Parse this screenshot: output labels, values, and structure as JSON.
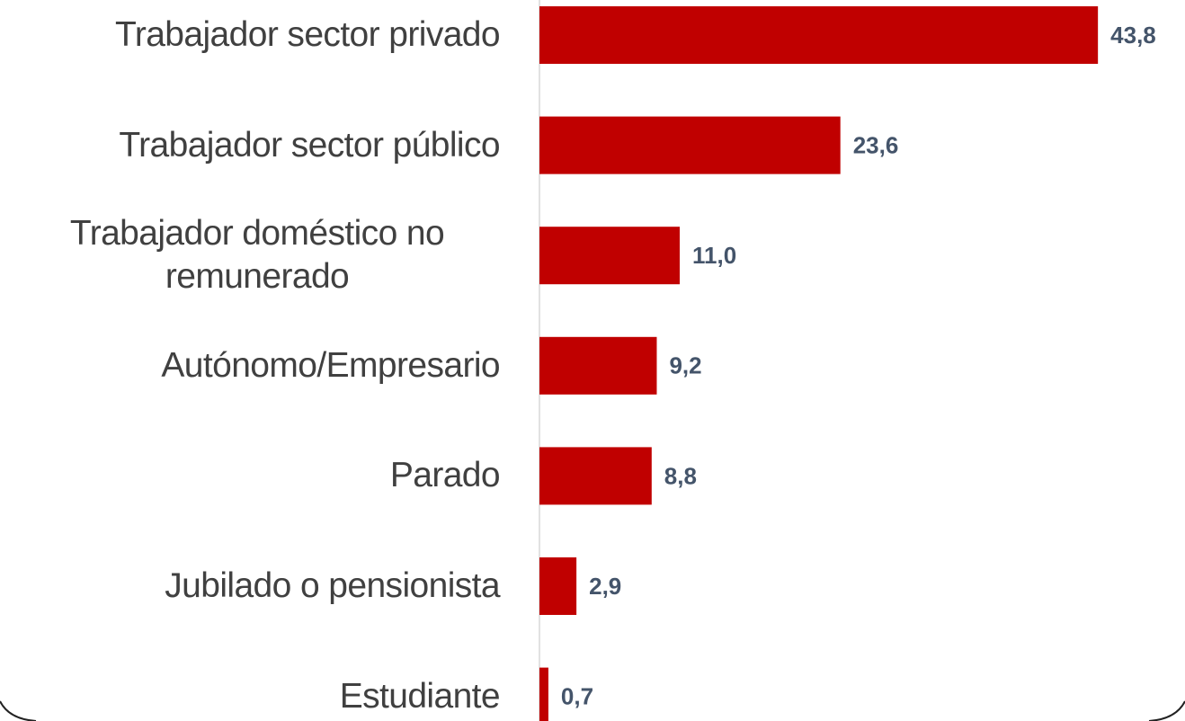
{
  "chart_data": {
    "type": "barh",
    "categories": [
      "Trabajador sector privado",
      "Trabajador sector público",
      "Trabajador doméstico no remunerado",
      "Autónomo/Empresario",
      "Parado",
      "Jubilado o pensionista",
      "Estudiante"
    ],
    "values": [
      43.8,
      23.6,
      11.0,
      9.2,
      8.8,
      2.9,
      0.7
    ],
    "value_labels": [
      "43,8",
      "23,6",
      "11,0",
      "9,2",
      "8,8",
      "2,9",
      "0,7"
    ],
    "color": "#c00000",
    "xlim": [
      0,
      44
    ]
  }
}
